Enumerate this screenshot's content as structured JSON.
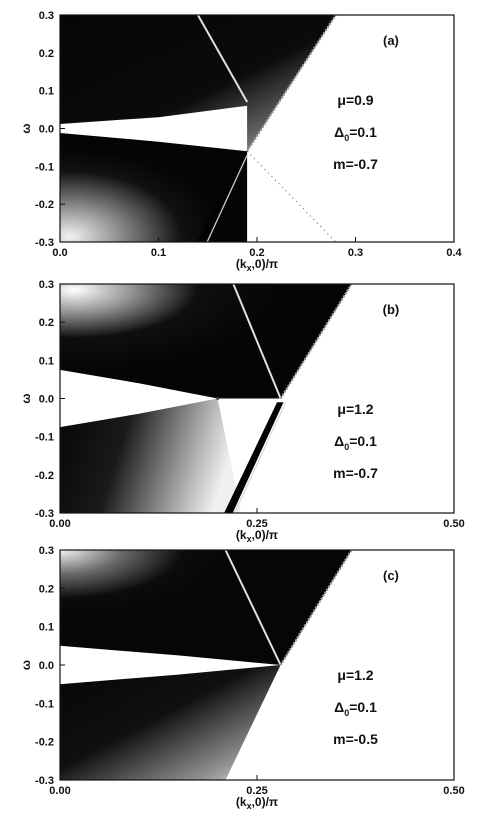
{
  "chart_data": [
    {
      "type": "heatmap",
      "panel_label": "(a)",
      "xlabel": "(k",
      "xlabel_sub": "x",
      "xlabel_tail": ",0)/π",
      "ylabel": "ω",
      "xlim": [
        0.0,
        0.4
      ],
      "ylim": [
        -0.3,
        0.3
      ],
      "xticks": [
        "0.0",
        "0.1",
        "0.2",
        "0.3",
        "0.4"
      ],
      "yticks": [
        "0.3",
        "0.2",
        "0.1",
        "0.0",
        "-0.1",
        "-0.2",
        "-0.3"
      ],
      "annotations": [
        {
          "pre": "μ=0.9",
          "sub": "",
          "post": ""
        },
        {
          "pre": "Δ",
          "sub": "0",
          "post": "=0.1"
        },
        {
          "pre": "m=-0.7",
          "sub": "",
          "post": ""
        }
      ],
      "bulk_edge_crossing": 0.19,
      "edge_band_upper": [
        [
          0.0,
          0.012
        ],
        [
          0.1,
          0.03
        ],
        [
          0.19,
          0.06
        ]
      ],
      "edge_band_lower": [
        [
          0.0,
          -0.012
        ],
        [
          0.1,
          -0.035
        ],
        [
          0.19,
          -0.06
        ]
      ],
      "boundary_line": [
        [
          0.19,
          -0.06
        ],
        [
          0.28,
          0.3
        ]
      ],
      "faint_line": [
        [
          0.19,
          -0.06
        ],
        [
          0.28,
          -0.3
        ]
      ],
      "inner_branch": [
        [
          0.19,
          0.07
        ],
        [
          0.14,
          0.3
        ]
      ],
      "lower_branch": [
        [
          0.185,
          -0.07
        ],
        [
          0.14,
          -0.3
        ]
      ]
    },
    {
      "type": "heatmap",
      "panel_label": "(b)",
      "xlabel": "(k",
      "xlabel_sub": "x",
      "xlabel_tail": ",0)/π",
      "ylabel": "ω",
      "xlim": [
        0.0,
        0.5
      ],
      "ylim": [
        -0.3,
        0.3
      ],
      "xticks": [
        "0.00",
        "0.25",
        "0.50"
      ],
      "yticks": [
        "0.3",
        "0.2",
        "0.1",
        "0.0",
        "-0.1",
        "-0.2",
        "-0.3"
      ],
      "annotations": [
        {
          "pre": "μ=1.2",
          "sub": "",
          "post": ""
        },
        {
          "pre": "Δ",
          "sub": "0",
          "post": "=0.1"
        },
        {
          "pre": "m=-0.7",
          "sub": "",
          "post": ""
        }
      ],
      "dirac_point": [
        0.2,
        0.0
      ],
      "edge_band_upper": [
        [
          0.0,
          0.075
        ],
        [
          0.1,
          0.04
        ],
        [
          0.2,
          0.0
        ]
      ],
      "edge_band_lower": [
        [
          0.0,
          -0.075
        ],
        [
          0.1,
          -0.04
        ],
        [
          0.2,
          0.0
        ]
      ],
      "boundary_line": [
        [
          0.28,
          0.0
        ],
        [
          0.37,
          0.3
        ]
      ],
      "inner_branch": [
        [
          0.28,
          0.0
        ],
        [
          0.22,
          0.3
        ]
      ],
      "lower_branch": [
        [
          0.28,
          -0.01
        ],
        [
          0.21,
          -0.3
        ]
      ]
    },
    {
      "type": "heatmap",
      "panel_label": "(c)",
      "xlabel": "(k",
      "xlabel_sub": "x",
      "xlabel_tail": ",0)/π",
      "ylabel": "ω",
      "xlim": [
        0.0,
        0.5
      ],
      "ylim": [
        -0.3,
        0.3
      ],
      "xticks": [
        "0.00",
        "0.25",
        "0.50"
      ],
      "yticks": [
        "0.3",
        "0.2",
        "0.1",
        "0.0",
        "-0.1",
        "-0.2",
        "-0.3"
      ],
      "annotations": [
        {
          "pre": "μ=1.2",
          "sub": "",
          "post": ""
        },
        {
          "pre": "Δ",
          "sub": "0",
          "post": "=0.1"
        },
        {
          "pre": "m=-0.5",
          "sub": "",
          "post": ""
        }
      ],
      "edge_band_upper": [
        [
          0.0,
          0.05
        ],
        [
          0.15,
          0.025
        ],
        [
          0.28,
          0.0
        ]
      ],
      "edge_band_lower": [
        [
          0.0,
          -0.05
        ],
        [
          0.15,
          -0.025
        ],
        [
          0.28,
          0.0
        ]
      ],
      "boundary_line": [
        [
          0.28,
          0.0
        ],
        [
          0.37,
          0.3
        ]
      ],
      "lower_boundary": [
        [
          0.28,
          0.0
        ],
        [
          0.21,
          -0.3
        ]
      ],
      "inner_branch": [
        [
          0.28,
          0.0
        ],
        [
          0.21,
          0.3
        ]
      ]
    }
  ]
}
